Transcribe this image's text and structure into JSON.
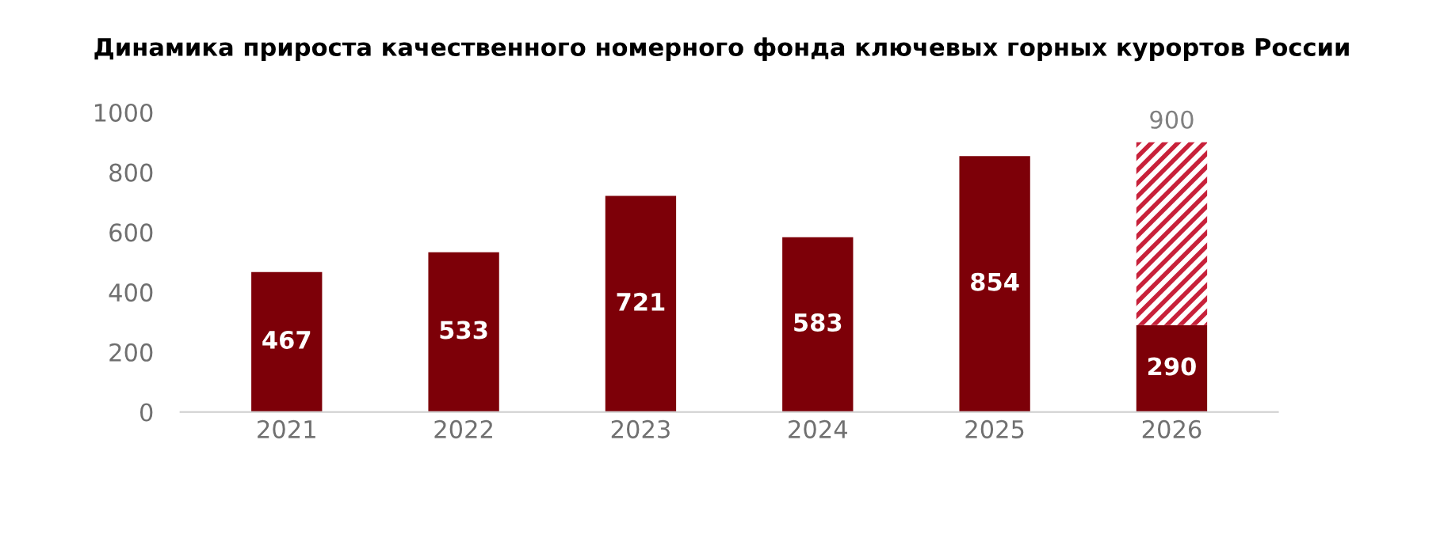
{
  "chart_data": {
    "type": "bar",
    "title": "Динамика прироста качественного номерного фонда ключевых горных курортов России",
    "categories": [
      "2021",
      "2022",
      "2023",
      "2024",
      "2025",
      "2026"
    ],
    "stacked": true,
    "series": [
      {
        "color": "#7d0008",
        "values": [
          467,
          533,
          721,
          583,
          854,
          290
        ],
        "value_labels": [
          "467",
          "533",
          "721",
          "583",
          "854",
          "290"
        ]
      },
      {
        "color": "#c8213a",
        "values": [
          null,
          null,
          null,
          null,
          null,
          610
        ]
      }
    ],
    "totals": [
      null,
      null,
      null,
      null,
      null,
      "900"
    ],
    "ylim": [
      0,
      1000
    ],
    "yticks": [
      0,
      200,
      400,
      600,
      800,
      1000
    ],
    "grid": false,
    "legend": false
  }
}
